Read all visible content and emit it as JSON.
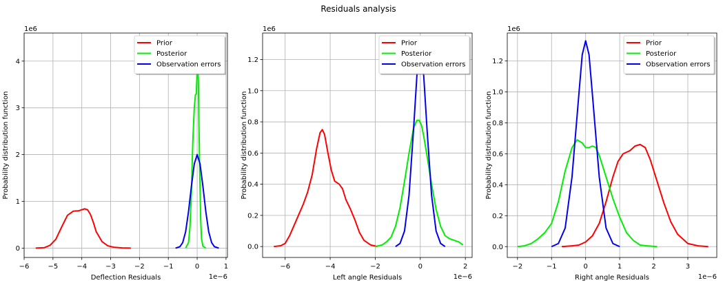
{
  "figure": {
    "suptitle": "Residuals analysis"
  },
  "chart_data": [
    {
      "type": "line",
      "title": "",
      "xlabel": "Deflection Residuals",
      "ylabel": "Probability distribution function",
      "x_scale_label": "1e−6",
      "y_scale_label": "1e6",
      "xlim": [
        -6.0,
        1.05
      ],
      "ylim": [
        -0.2,
        4.6
      ],
      "xticks": [
        -6,
        -5,
        -4,
        -3,
        -2,
        -1,
        0,
        1
      ],
      "xtick_labels": [
        "−6",
        "−5",
        "−4",
        "−3",
        "−2",
        "−1",
        "0",
        "1"
      ],
      "yticks": [
        0,
        1,
        2,
        3,
        4
      ],
      "ytick_labels": [
        "0",
        "1",
        "2",
        "3",
        "4"
      ],
      "grid": true,
      "legend_position": "top-right",
      "series": [
        {
          "name": "Prior",
          "color": "#ff0000",
          "x": [
            -5.6,
            -5.3,
            -5.1,
            -4.9,
            -4.7,
            -4.5,
            -4.3,
            -4.1,
            -4.0,
            -3.9,
            -3.8,
            -3.7,
            -3.6,
            -3.5,
            -3.3,
            -3.1,
            -2.9,
            -2.6,
            -2.3
          ],
          "y": [
            0.0,
            0.01,
            0.06,
            0.19,
            0.45,
            0.7,
            0.79,
            0.8,
            0.82,
            0.84,
            0.82,
            0.72,
            0.55,
            0.35,
            0.14,
            0.05,
            0.02,
            0.005,
            0.0
          ]
        },
        {
          "name": "Posterior",
          "color": "#00ee00",
          "x": [
            -0.4,
            -0.3,
            -0.25,
            -0.2,
            -0.15,
            -0.1,
            -0.06,
            -0.03,
            -0.01,
            0.01,
            0.02,
            0.04,
            0.06,
            0.09,
            0.12,
            0.15,
            0.2,
            0.3
          ],
          "y": [
            0.0,
            0.12,
            0.45,
            1.2,
            2.3,
            3.0,
            3.28,
            3.3,
            3.65,
            3.95,
            3.95,
            3.6,
            2.7,
            1.6,
            0.65,
            0.2,
            0.04,
            0.0
          ]
        },
        {
          "name": "Observation errors",
          "color": "#0000ee",
          "x": [
            -0.75,
            -0.6,
            -0.5,
            -0.4,
            -0.3,
            -0.2,
            -0.1,
            0.0,
            0.1,
            0.2,
            0.3,
            0.4,
            0.5,
            0.6,
            0.75
          ],
          "y": [
            0.0,
            0.03,
            0.12,
            0.35,
            0.78,
            1.32,
            1.8,
            2.0,
            1.8,
            1.32,
            0.78,
            0.35,
            0.12,
            0.03,
            0.0
          ]
        }
      ]
    },
    {
      "type": "line",
      "title": "",
      "xlabel": "Left angle Residuals",
      "ylabel": "Probability distribution function",
      "x_scale_label": "1e−6",
      "y_scale_label": "1e6",
      "xlim": [
        -7.0,
        2.3
      ],
      "ylim": [
        -0.07,
        1.37
      ],
      "xticks": [
        -6,
        -4,
        -2,
        0,
        2
      ],
      "xtick_labels": [
        "−6",
        "−4",
        "−2",
        "0",
        "2"
      ],
      "yticks": [
        0.0,
        0.2,
        0.4,
        0.6,
        0.8,
        1.0,
        1.2
      ],
      "ytick_labels": [
        "0.0",
        "0.2",
        "0.4",
        "0.6",
        "0.8",
        "1.0",
        "1.2"
      ],
      "grid": true,
      "legend_position": "top-right",
      "series": [
        {
          "name": "Prior",
          "color": "#ff0000",
          "x": [
            -6.5,
            -6.2,
            -6.0,
            -5.8,
            -5.5,
            -5.2,
            -5.0,
            -4.8,
            -4.6,
            -4.45,
            -4.35,
            -4.25,
            -4.1,
            -3.95,
            -3.8,
            -3.6,
            -3.45,
            -3.3,
            -3.1,
            -2.9,
            -2.7,
            -2.5,
            -2.2,
            -1.9
          ],
          "y": [
            0.0,
            0.005,
            0.02,
            0.07,
            0.17,
            0.27,
            0.35,
            0.46,
            0.63,
            0.73,
            0.75,
            0.72,
            0.6,
            0.49,
            0.42,
            0.4,
            0.37,
            0.3,
            0.24,
            0.17,
            0.09,
            0.04,
            0.01,
            0.0
          ]
        },
        {
          "name": "Posterior",
          "color": "#00ee00",
          "x": [
            -2.0,
            -1.7,
            -1.5,
            -1.3,
            -1.1,
            -0.9,
            -0.7,
            -0.5,
            -0.3,
            -0.15,
            -0.05,
            0.05,
            0.15,
            0.3,
            0.5,
            0.7,
            0.9,
            1.1,
            1.3,
            1.5,
            1.7,
            1.9
          ],
          "y": [
            0.0,
            0.01,
            0.03,
            0.06,
            0.13,
            0.25,
            0.42,
            0.6,
            0.76,
            0.81,
            0.81,
            0.78,
            0.71,
            0.58,
            0.4,
            0.24,
            0.13,
            0.07,
            0.05,
            0.04,
            0.03,
            0.01
          ]
        },
        {
          "name": "Observation errors",
          "color": "#0000ee",
          "x": [
            -1.1,
            -0.9,
            -0.7,
            -0.5,
            -0.3,
            -0.15,
            0.0,
            0.15,
            0.3,
            0.5,
            0.7,
            0.9,
            1.1
          ],
          "y": [
            0.0,
            0.02,
            0.1,
            0.33,
            0.75,
            1.1,
            1.24,
            1.1,
            0.75,
            0.33,
            0.1,
            0.02,
            0.0
          ]
        }
      ]
    },
    {
      "type": "line",
      "title": "",
      "xlabel": "Right angle Residuals",
      "ylabel": "Probability distribution function",
      "x_scale_label": "1e−6",
      "y_scale_label": "1e6",
      "xlim": [
        -2.3,
        3.85
      ],
      "ylim": [
        -0.07,
        1.38
      ],
      "xticks": [
        -2,
        -1,
        0,
        1,
        2,
        3
      ],
      "xtick_labels": [
        "−2",
        "−1",
        "0",
        "1",
        "2",
        "3"
      ],
      "yticks": [
        0.0,
        0.2,
        0.4,
        0.6,
        0.8,
        1.0,
        1.2
      ],
      "ytick_labels": [
        "0.0",
        "0.2",
        "0.4",
        "0.6",
        "0.8",
        "1.0",
        "1.2"
      ],
      "grid": true,
      "legend_position": "top-right",
      "series": [
        {
          "name": "Prior",
          "color": "#ff0000",
          "x": [
            -0.7,
            -0.4,
            -0.2,
            0.0,
            0.2,
            0.4,
            0.6,
            0.8,
            0.95,
            1.1,
            1.3,
            1.45,
            1.6,
            1.75,
            1.9,
            2.1,
            2.3,
            2.5,
            2.7,
            3.0,
            3.3,
            3.6
          ],
          "y": [
            0.0,
            0.005,
            0.01,
            0.03,
            0.07,
            0.15,
            0.29,
            0.45,
            0.55,
            0.6,
            0.62,
            0.65,
            0.66,
            0.64,
            0.56,
            0.42,
            0.28,
            0.16,
            0.08,
            0.02,
            0.005,
            0.0
          ]
        },
        {
          "name": "Posterior",
          "color": "#00ee00",
          "x": [
            -2.0,
            -1.8,
            -1.6,
            -1.4,
            -1.2,
            -1.0,
            -0.8,
            -0.6,
            -0.4,
            -0.25,
            -0.1,
            0.0,
            0.1,
            0.2,
            0.3,
            0.4,
            0.6,
            0.8,
            1.0,
            1.2,
            1.4,
            1.6,
            1.8,
            2.1
          ],
          "y": [
            0.0,
            0.005,
            0.02,
            0.05,
            0.09,
            0.15,
            0.29,
            0.49,
            0.64,
            0.69,
            0.67,
            0.64,
            0.64,
            0.65,
            0.64,
            0.59,
            0.45,
            0.31,
            0.19,
            0.09,
            0.04,
            0.01,
            0.005,
            0.0
          ]
        },
        {
          "name": "Observation errors",
          "color": "#0000ee",
          "x": [
            -1.0,
            -0.8,
            -0.6,
            -0.4,
            -0.2,
            -0.1,
            0.0,
            0.1,
            0.2,
            0.4,
            0.6,
            0.8,
            1.0
          ],
          "y": [
            0.0,
            0.02,
            0.12,
            0.45,
            0.98,
            1.24,
            1.33,
            1.24,
            0.98,
            0.45,
            0.12,
            0.02,
            0.0
          ]
        }
      ]
    }
  ]
}
